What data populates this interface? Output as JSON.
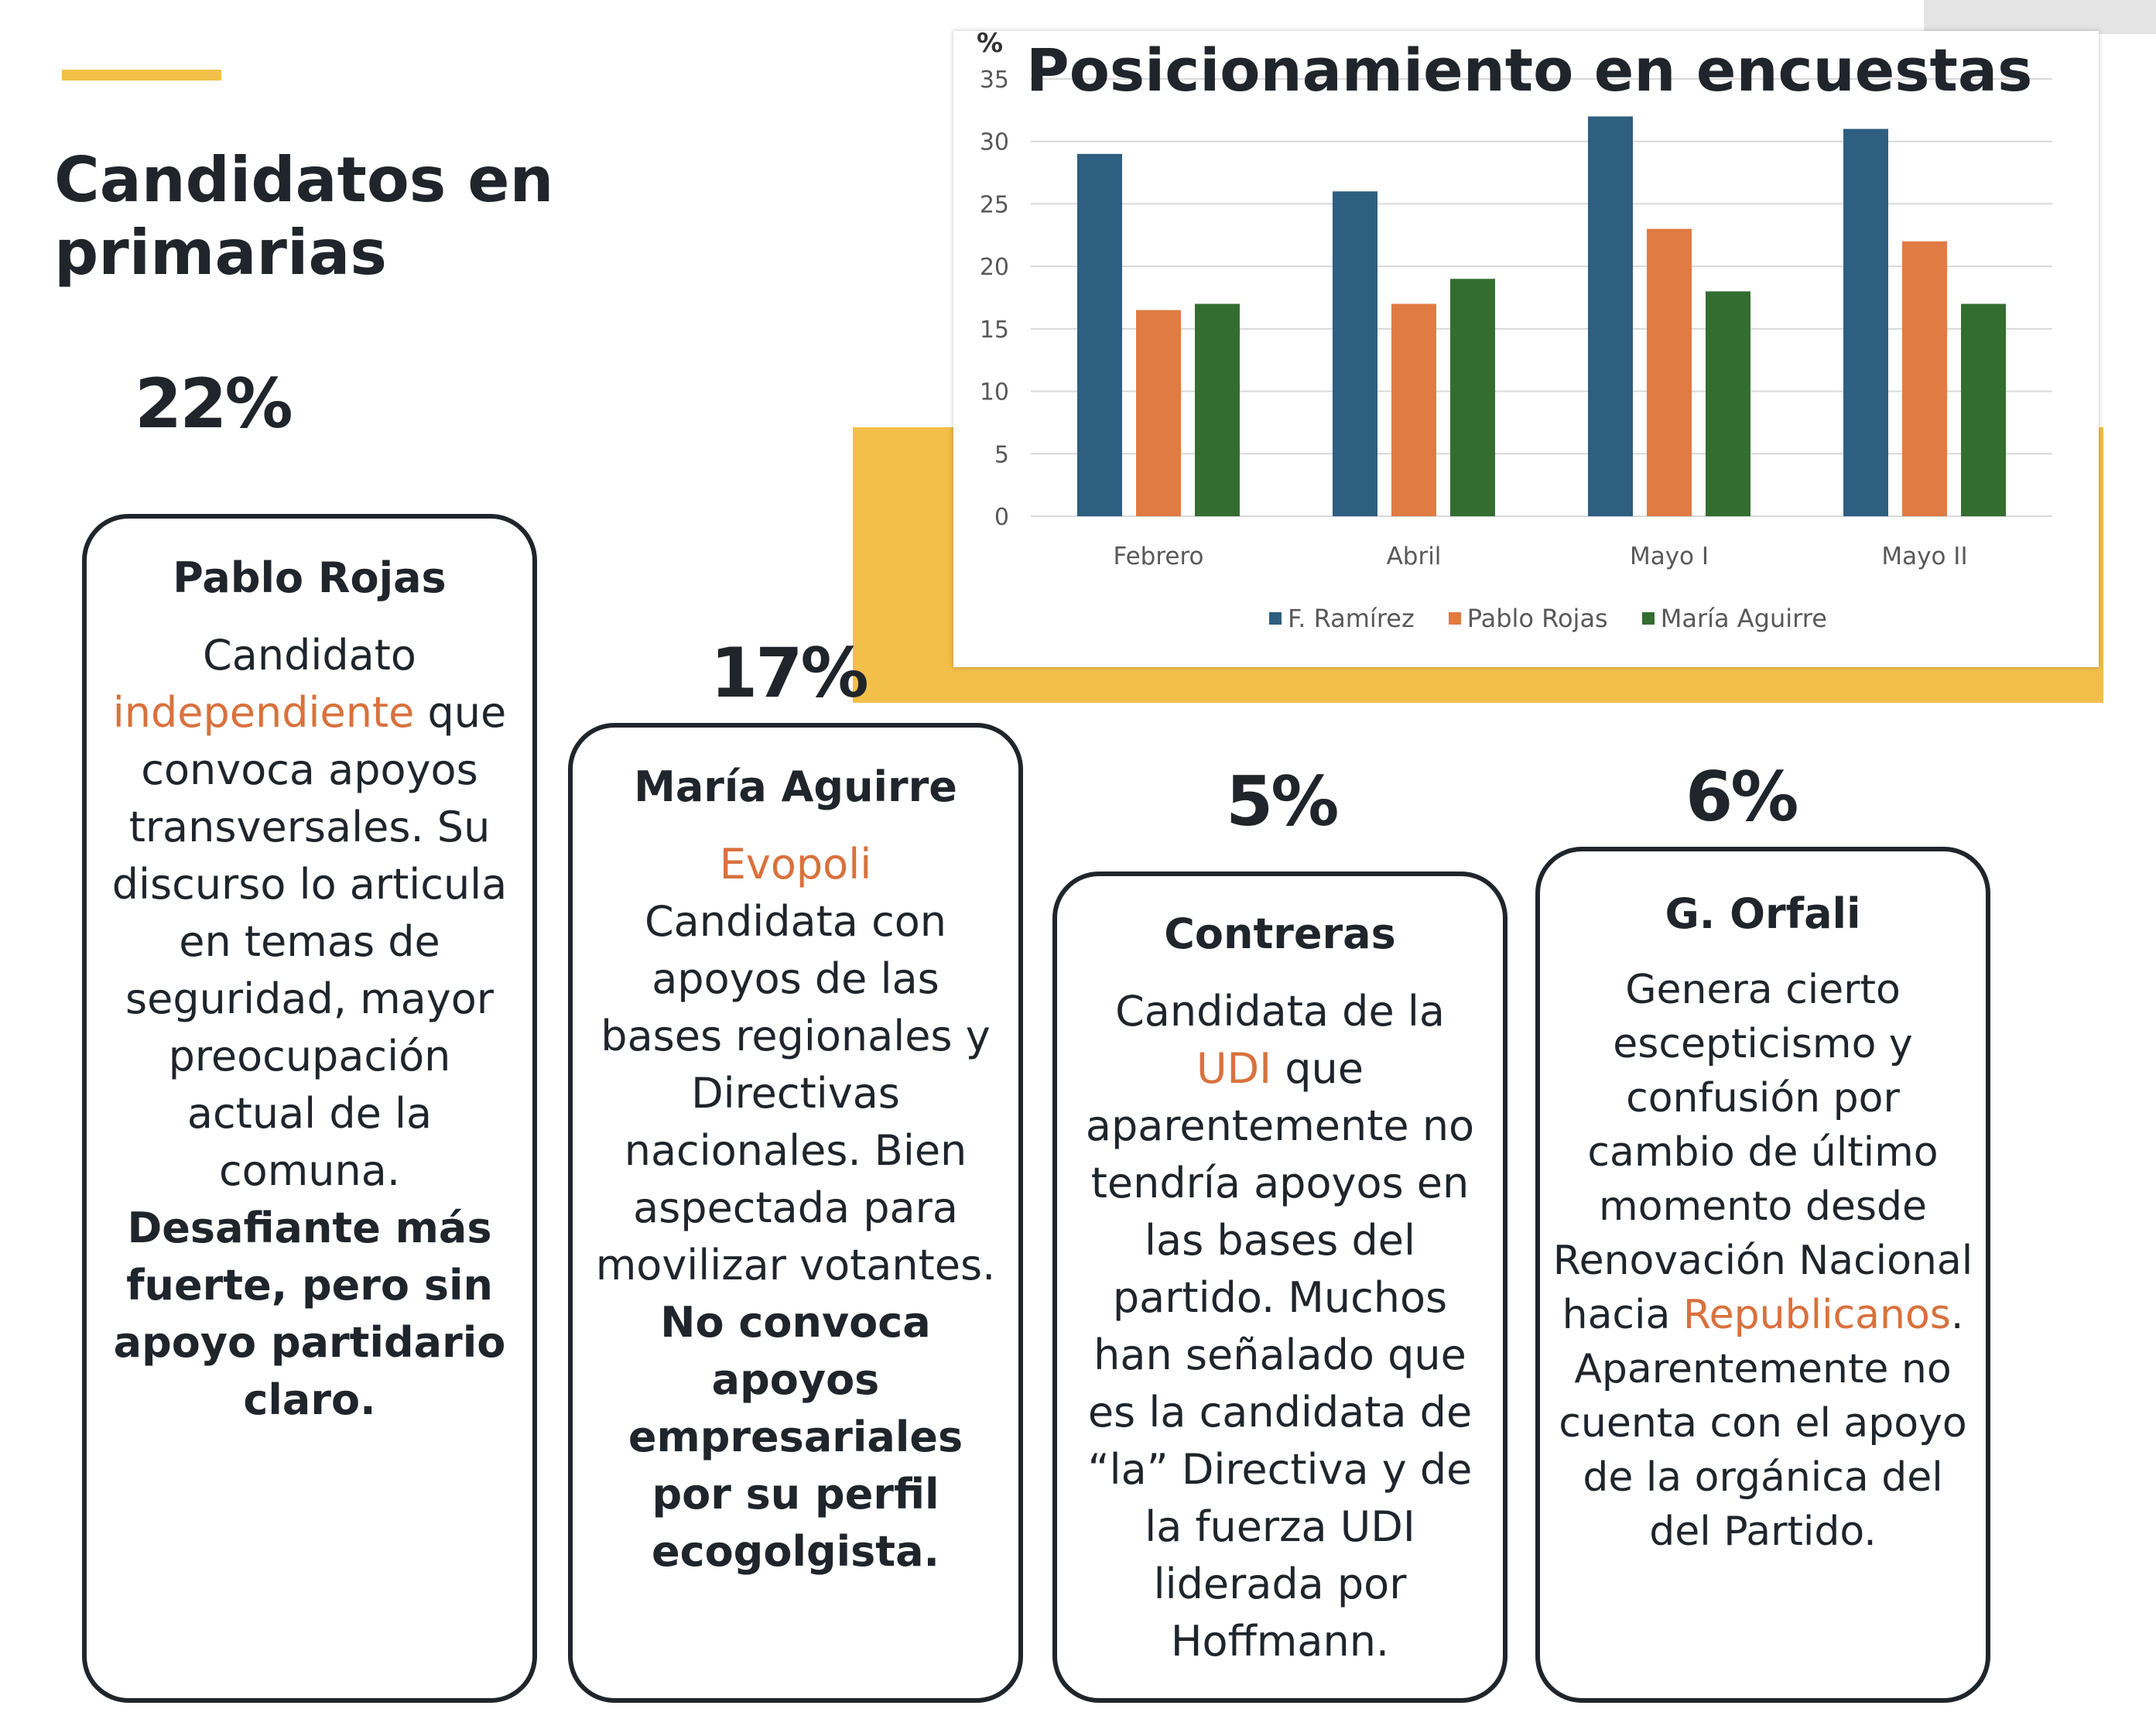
{
  "header": {
    "title_line1": "Candidatos en",
    "title_line2": "primarias"
  },
  "candidates": [
    {
      "percent": "22%",
      "name": "Pablo Rojas",
      "text1": "Candidato",
      "highlight": "independiente",
      "text2": "que convoca apoyos transversales. Su discurso lo articula en temas de seguridad, mayor preocupación actual de la comuna.",
      "bold": "Desafiante más fuerte, pero sin apoyo partidario claro."
    },
    {
      "percent": "17%",
      "name": "María Aguirre",
      "highlight": "Evopoli",
      "text1": "Candidata con apoyos de las bases regionales y Directivas nacionales. Bien aspectada para movilizar votantes.",
      "bold": "No convoca apoyos empresariales por su perfil ecogolgista."
    },
    {
      "percent": "5%",
      "name": "Contreras",
      "text1": "Candidata de la",
      "highlight": "UDI",
      "text2": "que aparentemente no tendría apoyos en las bases del partido. Muchos han señalado que es la candidata de “la” Directiva y de la fuerza UDI liderada por Hoffmann."
    },
    {
      "percent": "6%",
      "name": "G. Orfali",
      "text1": "Genera cierto escepticismo y confusión por cambio de último momento desde Renovación Nacional hacia",
      "highlight": "Republicanos",
      "text2": ". Aparentemente no cuenta con el apoyo de la orgánica del del Partido."
    }
  ],
  "colors": {
    "accent_yellow": "#f2bf49",
    "highlight_orange": "#d9713d",
    "text_dark": "#1f252b"
  },
  "chart_data": {
    "type": "bar",
    "title": "Posicionamiento en encuestas",
    "ylabel": "%",
    "ylim": [
      0,
      35
    ],
    "yticks": [
      "0",
      "5",
      "10",
      "15",
      "20",
      "25",
      "30",
      "35"
    ],
    "categories": [
      "Febrero",
      "Abril",
      "Mayo I",
      "Mayo II"
    ],
    "series": [
      {
        "name": "F. Ramírez",
        "color": "#2e5e80",
        "values": [
          29,
          26,
          32,
          31
        ]
      },
      {
        "name": "Pablo Rojas",
        "color": "#e07b43",
        "values": [
          16.5,
          17,
          23,
          22
        ]
      },
      {
        "name": "María Aguirre",
        "color": "#336e30",
        "values": [
          17,
          19,
          18,
          17
        ]
      }
    ],
    "grid": true,
    "legend_position": "bottom"
  }
}
